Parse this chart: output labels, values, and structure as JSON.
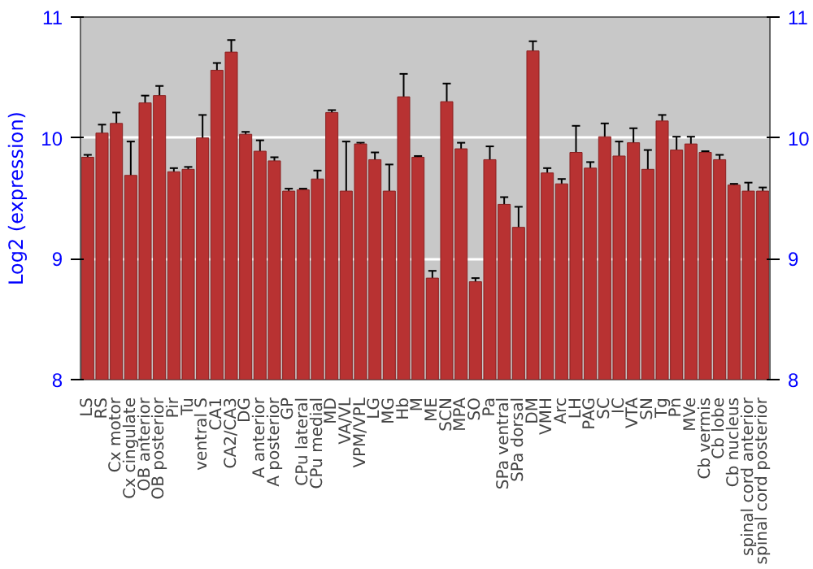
{
  "chart_data": {
    "type": "bar",
    "ylabel": "Log2 (expression)",
    "categories": [
      "LS",
      "RS",
      "Cx motor",
      "Cx cingulate",
      "OB anterior",
      "OB posterior",
      "Pir",
      "Tu",
      "ventral S",
      "CA1",
      "CA2/CA3",
      "DG",
      "A anterior",
      "A posterior",
      "GP",
      "CPu lateral",
      "CPu medial",
      "MD",
      "VA/VL",
      "VPM/VPL",
      "LG",
      "MG",
      "Hb",
      "M",
      "ME",
      "SCN",
      "MPA",
      "SO",
      "Pa",
      "SPa ventral",
      "SPa dorsal",
      "DM",
      "VMH",
      "Arc",
      "LH",
      "PAG",
      "SC",
      "IC",
      "VTA",
      "SN",
      "Tg",
      "Pn",
      "MVe",
      "Cb vermis",
      "Cb lobe",
      "Cb nucleus",
      "spinal cord anterior",
      "spinal cord posterior"
    ],
    "values": [
      9.84,
      10.04,
      10.12,
      9.69,
      10.29,
      10.35,
      9.72,
      9.74,
      10.0,
      10.56,
      10.71,
      10.03,
      9.89,
      9.81,
      9.56,
      9.57,
      9.66,
      10.21,
      9.56,
      9.95,
      9.82,
      9.56,
      10.34,
      9.84,
      8.84,
      10.3,
      9.91,
      8.81,
      9.82,
      9.45,
      9.26,
      10.72,
      9.71,
      9.62,
      9.88,
      9.75,
      10.01,
      9.85,
      9.96,
      9.74,
      10.14,
      9.9,
      9.95,
      9.88,
      9.82,
      9.61,
      9.56,
      9.56
    ],
    "errors": [
      0.02,
      0.07,
      0.09,
      0.28,
      0.06,
      0.08,
      0.03,
      0.02,
      0.19,
      0.06,
      0.1,
      0.02,
      0.09,
      0.03,
      0.02,
      0.01,
      0.07,
      0.02,
      0.41,
      0.01,
      0.06,
      0.22,
      0.19,
      0.01,
      0.06,
      0.15,
      0.05,
      0.03,
      0.11,
      0.06,
      0.17,
      0.08,
      0.04,
      0.04,
      0.22,
      0.05,
      0.11,
      0.12,
      0.12,
      0.16,
      0.05,
      0.11,
      0.06,
      0.01,
      0.04,
      0.01,
      0.07,
      0.03
    ],
    "color": "#b83232",
    "ylim": [
      8,
      11
    ],
    "yticks": [
      8,
      9,
      10,
      11
    ],
    "y2lim": [
      8,
      11
    ],
    "y2ticks": [
      8,
      9,
      10,
      11
    ],
    "grid": "y"
  }
}
